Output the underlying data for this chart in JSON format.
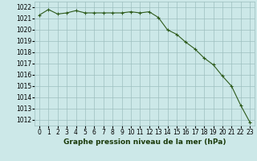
{
  "x": [
    0,
    1,
    2,
    3,
    4,
    5,
    6,
    7,
    8,
    9,
    10,
    11,
    12,
    13,
    14,
    15,
    16,
    17,
    18,
    19,
    20,
    21,
    22,
    23
  ],
  "y": [
    1021.3,
    1021.8,
    1021.4,
    1021.5,
    1021.7,
    1021.5,
    1021.5,
    1021.5,
    1021.5,
    1021.5,
    1021.6,
    1021.5,
    1021.6,
    1021.1,
    1020.0,
    1019.6,
    1018.9,
    1018.3,
    1017.5,
    1016.9,
    1015.9,
    1015.0,
    1013.3,
    1011.8
  ],
  "line_color": "#2d5a1b",
  "marker_color": "#2d5a1b",
  "bg_color": "#cce8e8",
  "grid_color": "#9dbfbf",
  "title": "Graphe pression niveau de la mer (hPa)",
  "ylabel_ticks": [
    1012,
    1013,
    1014,
    1015,
    1016,
    1017,
    1018,
    1019,
    1020,
    1021,
    1022
  ],
  "ylim": [
    1011.5,
    1022.5
  ],
  "xlim": [
    -0.5,
    23.5
  ],
  "title_fontsize": 6.5,
  "tick_fontsize": 5.5
}
